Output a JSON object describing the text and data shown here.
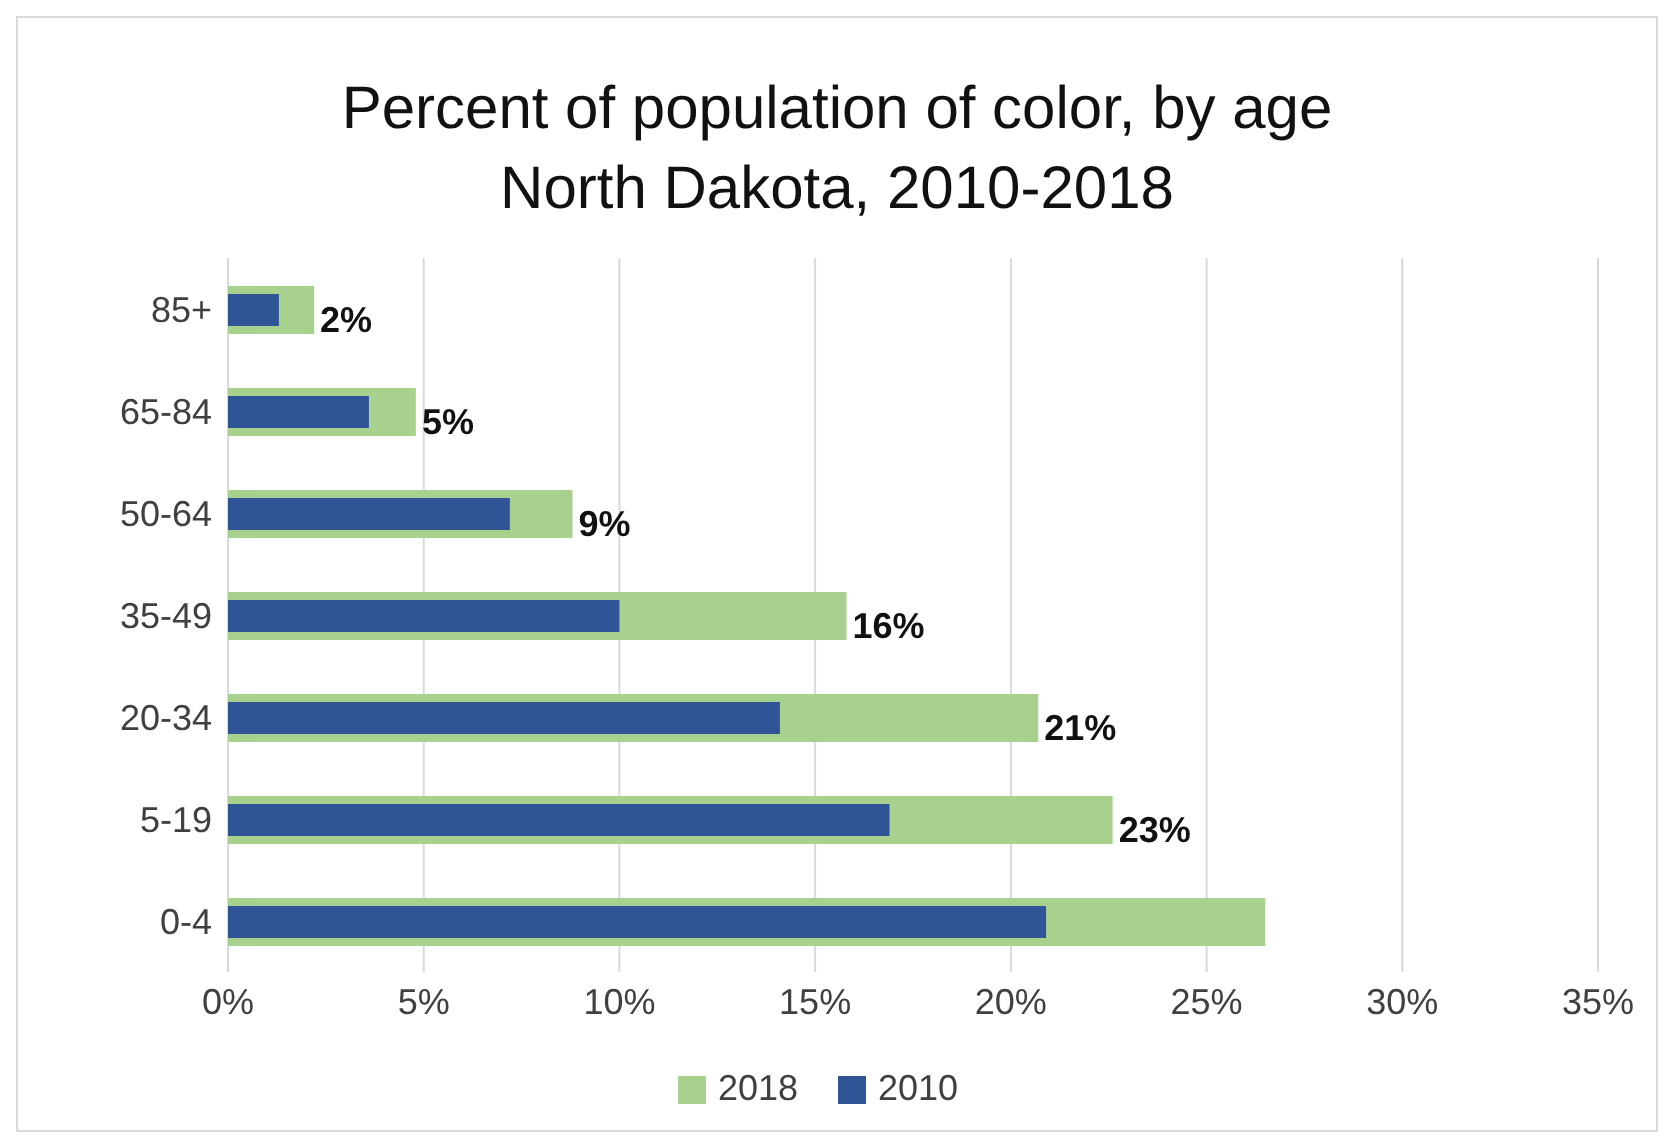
{
  "chart_data": {
    "type": "bar",
    "orientation": "horizontal",
    "title": "Percent of population of color, by age",
    "subtitle": "North Dakota, 2010-2018",
    "categories": [
      "85+",
      "65-84",
      "50-64",
      "35-49",
      "20-34",
      "5-19",
      "0-4"
    ],
    "series": [
      {
        "name": "2018",
        "color": "#a9d18e",
        "values": [
          2.2,
          4.8,
          8.8,
          15.8,
          20.7,
          22.6,
          26.5
        ],
        "value_labels": [
          "2%",
          "5%",
          "9%",
          "16%",
          "21%",
          "23%",
          null
        ]
      },
      {
        "name": "2010",
        "color": "#2f5597",
        "values": [
          1.3,
          3.6,
          7.2,
          10.0,
          14.1,
          16.9,
          20.9
        ]
      }
    ],
    "xlim": [
      0,
      35
    ],
    "xticks": [
      {
        "value": 0,
        "label": "0%"
      },
      {
        "value": 5,
        "label": "5%"
      },
      {
        "value": 10,
        "label": "10%"
      },
      {
        "value": 15,
        "label": "15%"
      },
      {
        "value": 20,
        "label": "20%"
      },
      {
        "value": 25,
        "label": "25%"
      },
      {
        "value": 30,
        "label": "30%"
      },
      {
        "value": 35,
        "label": "35%"
      }
    ],
    "grid": "x",
    "legend": "bottom"
  }
}
